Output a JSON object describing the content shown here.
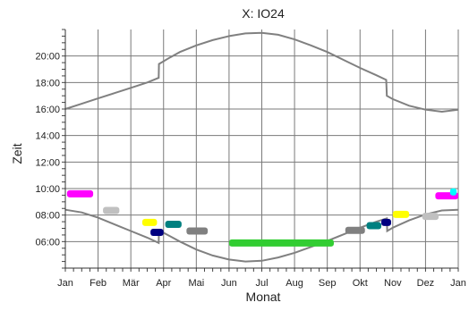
{
  "chart_data": {
    "type": "scatter",
    "title": "X: IO24",
    "xlabel": "Monat",
    "ylabel": "Zeit",
    "x_ticks": [
      "Jan",
      "Feb",
      "Mär",
      "Apr",
      "Mai",
      "Jun",
      "Jul",
      "Aug",
      "Sep",
      "Okt",
      "Nov",
      "Dez",
      "Jan"
    ],
    "y_ticks": [
      "06:00",
      "08:00",
      "10:00",
      "12:00",
      "14:00",
      "16:00",
      "18:00",
      "20:00"
    ],
    "ylim_hours": [
      4.0,
      22.0
    ],
    "xlim_months": [
      0,
      12
    ],
    "grid": true,
    "series": [
      {
        "line_color": "#808080",
        "points_month_hour": [
          [
            0,
            16.0
          ],
          [
            0.5,
            16.4
          ],
          [
            1,
            16.8
          ],
          [
            1.5,
            17.2
          ],
          [
            2,
            17.6
          ],
          [
            2.5,
            18.0
          ],
          [
            2.85,
            18.35
          ],
          [
            2.86,
            19.4
          ],
          [
            3.2,
            19.9
          ],
          [
            3.5,
            20.3
          ],
          [
            4,
            20.8
          ],
          [
            4.5,
            21.2
          ],
          [
            5,
            21.5
          ],
          [
            5.5,
            21.7
          ],
          [
            6,
            21.75
          ],
          [
            6.5,
            21.6
          ],
          [
            7,
            21.25
          ],
          [
            7.5,
            20.8
          ],
          [
            8,
            20.3
          ],
          [
            8.5,
            19.7
          ],
          [
            9,
            19.1
          ],
          [
            9.5,
            18.55
          ],
          [
            9.8,
            18.2
          ],
          [
            9.82,
            17.0
          ],
          [
            10,
            16.75
          ],
          [
            10.5,
            16.25
          ],
          [
            11,
            15.95
          ],
          [
            11.5,
            15.8
          ],
          [
            12,
            15.95
          ]
        ]
      },
      {
        "line_color": "#808080",
        "points_month_hour": [
          [
            0,
            8.4
          ],
          [
            0.5,
            8.2
          ],
          [
            1,
            7.8
          ],
          [
            1.5,
            7.3
          ],
          [
            2,
            6.8
          ],
          [
            2.5,
            6.3
          ],
          [
            2.85,
            5.9
          ],
          [
            2.86,
            6.85
          ],
          [
            3.2,
            6.4
          ],
          [
            3.5,
            6.0
          ],
          [
            4,
            5.4
          ],
          [
            4.5,
            4.95
          ],
          [
            5,
            4.65
          ],
          [
            5.5,
            4.5
          ],
          [
            6,
            4.55
          ],
          [
            6.5,
            4.8
          ],
          [
            7,
            5.15
          ],
          [
            7.5,
            5.6
          ],
          [
            8,
            6.05
          ],
          [
            8.5,
            6.55
          ],
          [
            9,
            7.05
          ],
          [
            9.5,
            7.5
          ],
          [
            9.82,
            7.75
          ],
          [
            9.83,
            6.8
          ],
          [
            10,
            7.05
          ],
          [
            10.5,
            7.6
          ],
          [
            11,
            8.05
          ],
          [
            11.5,
            8.35
          ],
          [
            12,
            8.4
          ]
        ]
      }
    ],
    "markers": [
      {
        "color": "#ff00ff",
        "month_start": 0.05,
        "month_end": 0.85,
        "hour": 9.6
      },
      {
        "color": "#c0c0c0",
        "month_start": 1.15,
        "month_end": 1.65,
        "hour": 8.35
      },
      {
        "color": "#ffff00",
        "month_start": 2.35,
        "month_end": 2.8,
        "hour": 7.45
      },
      {
        "color": "#000080",
        "month_start": 2.6,
        "month_end": 3.0,
        "hour": 6.7
      },
      {
        "color": "#008080",
        "month_start": 3.05,
        "month_end": 3.55,
        "hour": 7.3
      },
      {
        "color": "#808080",
        "month_start": 3.7,
        "month_end": 4.35,
        "hour": 6.8
      },
      {
        "color": "#32cd32",
        "month_start": 5.0,
        "month_end": 8.2,
        "hour": 5.9
      },
      {
        "color": "#808080",
        "month_start": 8.55,
        "month_end": 9.15,
        "hour": 6.85
      },
      {
        "color": "#008080",
        "month_start": 9.2,
        "month_end": 9.65,
        "hour": 7.2
      },
      {
        "color": "#000080",
        "month_start": 9.65,
        "month_end": 9.95,
        "hour": 7.45
      },
      {
        "color": "#ffff00",
        "month_start": 10.0,
        "month_end": 10.5,
        "hour": 8.05
      },
      {
        "color": "#c0c0c0",
        "month_start": 10.9,
        "month_end": 11.4,
        "hour": 7.9
      },
      {
        "color": "#ff00ff",
        "month_start": 11.3,
        "month_end": 12.0,
        "hour": 9.45
      },
      {
        "color": "#00ffff",
        "month_start": 11.75,
        "month_end": 11.95,
        "hour": 9.75
      }
    ]
  }
}
